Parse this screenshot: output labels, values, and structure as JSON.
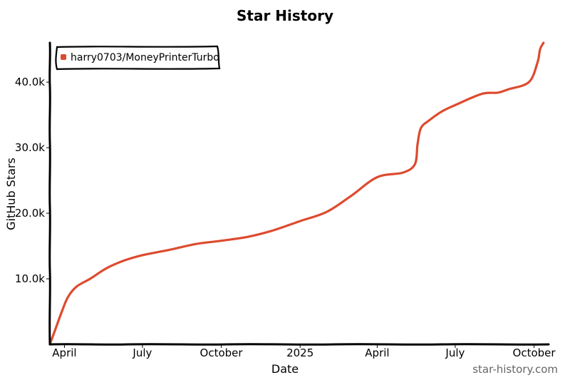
{
  "chart_data": {
    "type": "line",
    "title": "Star History",
    "xlabel": "Date",
    "ylabel": "GitHub Stars",
    "x_ticks": [
      "April",
      "July",
      "October",
      "2025",
      "April",
      "July",
      "October"
    ],
    "y_ticks": [
      "10.0k",
      "20.0k",
      "30.0k",
      "40.0k"
    ],
    "ylim": [
      0,
      46000
    ],
    "xlim": [
      "2024-03-15",
      "2025-10-18"
    ],
    "grid": false,
    "legend_position": "top-left",
    "series": [
      {
        "name": "harry0703/MoneyPrinterTurbo",
        "color": "#dd4b2f",
        "points": [
          {
            "x": "2024-03-15",
            "y": 0
          },
          {
            "x": "2024-03-22",
            "y": 2500
          },
          {
            "x": "2024-03-29",
            "y": 5000
          },
          {
            "x": "2024-04-05",
            "y": 7200
          },
          {
            "x": "2024-04-15",
            "y": 8800
          },
          {
            "x": "2024-05-01",
            "y": 10000
          },
          {
            "x": "2024-05-20",
            "y": 11600
          },
          {
            "x": "2024-06-10",
            "y": 12800
          },
          {
            "x": "2024-07-01",
            "y": 13600
          },
          {
            "x": "2024-08-01",
            "y": 14400
          },
          {
            "x": "2024-09-01",
            "y": 15300
          },
          {
            "x": "2024-10-01",
            "y": 15800
          },
          {
            "x": "2024-11-01",
            "y": 16400
          },
          {
            "x": "2024-12-01",
            "y": 17400
          },
          {
            "x": "2025-01-01",
            "y": 18800
          },
          {
            "x": "2025-02-01",
            "y": 20200
          },
          {
            "x": "2025-03-01",
            "y": 22600
          },
          {
            "x": "2025-04-01",
            "y": 25500
          },
          {
            "x": "2025-05-01",
            "y": 26200
          },
          {
            "x": "2025-05-15",
            "y": 27500
          },
          {
            "x": "2025-05-18",
            "y": 30500
          },
          {
            "x": "2025-05-22",
            "y": 33000
          },
          {
            "x": "2025-06-01",
            "y": 34200
          },
          {
            "x": "2025-06-15",
            "y": 35500
          },
          {
            "x": "2025-07-01",
            "y": 36500
          },
          {
            "x": "2025-08-01",
            "y": 38200
          },
          {
            "x": "2025-08-20",
            "y": 38400
          },
          {
            "x": "2025-09-01",
            "y": 38900
          },
          {
            "x": "2025-09-25",
            "y": 40000
          },
          {
            "x": "2025-10-05",
            "y": 43000
          },
          {
            "x": "2025-10-08",
            "y": 45000
          },
          {
            "x": "2025-10-12",
            "y": 46000
          }
        ]
      }
    ]
  },
  "watermark": "star-history.com"
}
